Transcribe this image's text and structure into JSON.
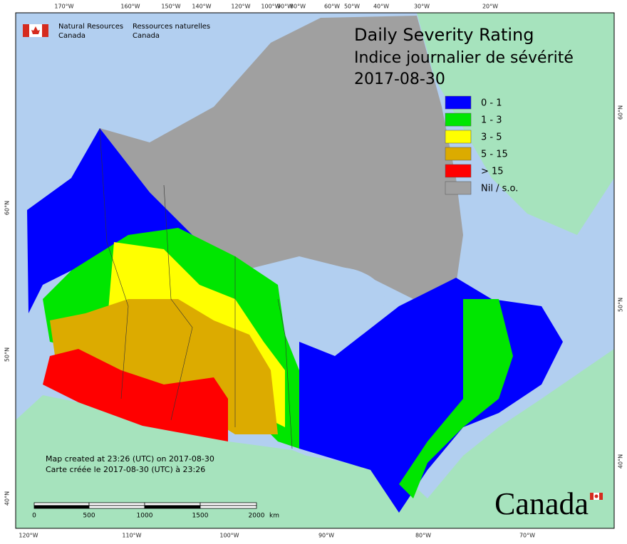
{
  "organization": {
    "en": [
      "Natural Resources",
      "Canada"
    ],
    "fr": [
      "Ressources naturelles",
      "Canada"
    ]
  },
  "title": [
    "Daily Severity Rating",
    "Indice journalier de sévérité",
    "2017-08-30"
  ],
  "legend": [
    {
      "label": "0 - 1",
      "color": "#0000ff"
    },
    {
      "label": "1 - 3",
      "color": "#00e600"
    },
    {
      "label": "3 - 5",
      "color": "#ffff00"
    },
    {
      "label": "5 - 15",
      "color": "#dcab00"
    },
    {
      "label": "> 15",
      "color": "#ff0000"
    },
    {
      "label": "Nil / s.o.",
      "color": "#a0a0a0"
    }
  ],
  "graticule": {
    "top": [
      "170°W",
      "160°W",
      "150°W",
      "140°W",
      "120°W",
      "100°W",
      "90°W",
      "80°W",
      "60°W",
      "50°W",
      "40°W",
      "30°W",
      "20°W"
    ],
    "bottom": [
      "120°W",
      "110°W",
      "100°W",
      "90°W",
      "80°W",
      "70°W"
    ],
    "left": [
      "60°N",
      "50°N",
      "40°N"
    ],
    "right": [
      "60°N",
      "50°N",
      "40°N"
    ]
  },
  "credits": [
    "Map created at 23:26 (UTC) on 2017-08-30",
    "Carte créée le 2017-08-30 (UTC) à 23:26"
  ],
  "scale_bar": {
    "labels": [
      "0",
      "500",
      "1000",
      "1500",
      "2000"
    ],
    "unit": "km"
  },
  "wordmark": "Canada"
}
